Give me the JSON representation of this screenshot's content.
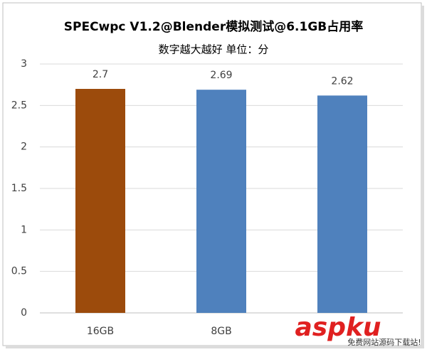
{
  "chart_data": {
    "type": "bar",
    "title": "SPECwpc V1.2@Blender模拟测试@6.1GB占用率",
    "subtitle": "数字越大越好 单位：分",
    "categories": [
      "16GB",
      "8GB",
      null
    ],
    "values": [
      2.7,
      2.69,
      2.62
    ],
    "colors": [
      "#9c4b0c",
      "#4f81bd",
      "#4f81bd"
    ],
    "ylim": [
      0,
      3
    ],
    "yticks": [
      0,
      0.5,
      1,
      1.5,
      2,
      2.5,
      3
    ],
    "grid": true,
    "watermark": {
      "text": "aspku",
      "subtext": "免费网站源码下载站!"
    }
  }
}
